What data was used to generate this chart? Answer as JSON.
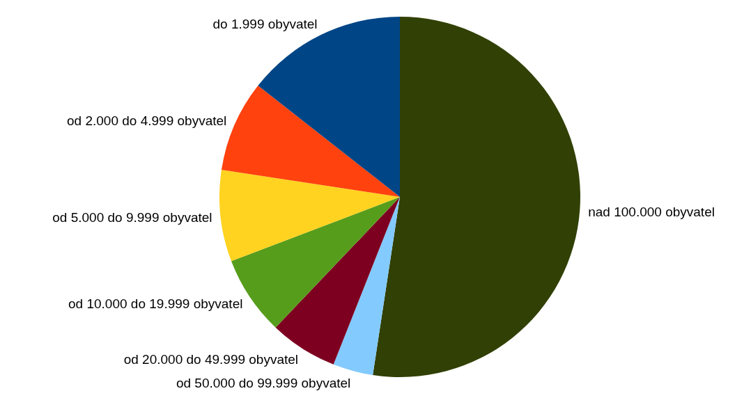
{
  "chart_data": {
    "type": "pie",
    "categories": [
      "nad 100.000 obyvatel",
      "od 50.000 do 99.999 obyvatel",
      "od 20.000 do 49.999 obyvatel",
      "od 10.000 do 19.999 obyvatel",
      "od 5.000 do 9.999 obyvatel",
      "od 2.000 do 4.999 obyvatel",
      "do 1.999 obyvatel"
    ],
    "values": [
      52.4,
      3.6,
      6.1,
      7.1,
      8.2,
      8.2,
      14.4
    ],
    "colors": [
      "#314004",
      "#83caff",
      "#7e0021",
      "#579d1c",
      "#ffd320",
      "#ff420e",
      "#004586"
    ],
    "legend": false
  }
}
